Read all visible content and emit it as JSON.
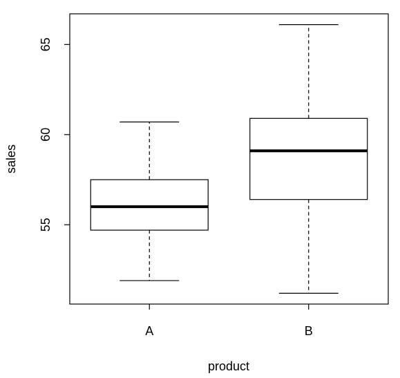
{
  "chart_data": {
    "type": "box",
    "xlabel": "product",
    "ylabel": "sales",
    "categories": [
      "A",
      "B"
    ],
    "boxes": [
      {
        "category": "A",
        "whisker_low": 51.9,
        "q1": 54.7,
        "median": 56.0,
        "q3": 57.5,
        "whisker_high": 60.7
      },
      {
        "category": "B",
        "whisker_low": 51.2,
        "q1": 56.4,
        "median": 59.1,
        "q3": 60.9,
        "whisker_high": 66.1
      }
    ],
    "y_ticks": [
      55,
      60,
      65
    ],
    "y_tick_labels": [
      "55",
      "60",
      "65"
    ],
    "ylim": [
      50.6,
      66.7
    ],
    "grid": false,
    "legend": "none"
  }
}
